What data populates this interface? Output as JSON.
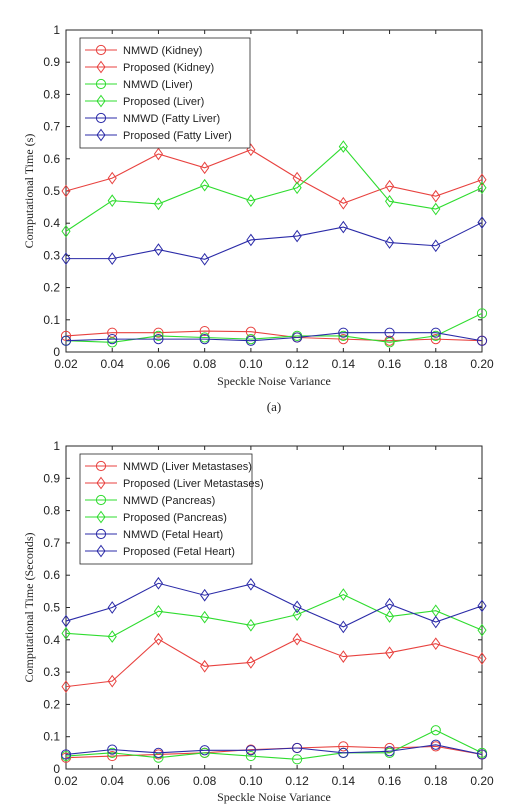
{
  "chart_data": [
    {
      "type": "line",
      "caption": "(a)",
      "xlabel": "Speckle Noise Variance",
      "ylabel": "Computational Time (s)",
      "xlim": [
        0.02,
        0.2
      ],
      "ylim": [
        0,
        1
      ],
      "x": [
        0.02,
        0.04,
        0.06,
        0.08,
        0.1,
        0.12,
        0.14,
        0.16,
        0.18,
        0.2
      ],
      "x_tick_labels": [
        "0.02",
        "0.04",
        "0.06",
        "0.08",
        "0.10",
        "0.12",
        "0.14",
        "0.16",
        "0.18",
        "0.20"
      ],
      "y_ticks": [
        0,
        0.1,
        0.2,
        0.3,
        0.4,
        0.5,
        0.6,
        0.7,
        0.8,
        0.9,
        1
      ],
      "y_tick_labels": [
        "0",
        "0.1",
        "0.2",
        "0.3",
        "0.4",
        "0.5",
        "0.6",
        "0.7",
        "0.8",
        "0.9",
        "1"
      ],
      "grid": false,
      "legend_position": "top-left",
      "series": [
        {
          "name": "NMWD (Kidney)",
          "color": "#e8423f",
          "marker": "circle",
          "values": [
            0.05,
            0.06,
            0.06,
            0.065,
            0.063,
            0.045,
            0.04,
            0.035,
            0.04,
            0.035
          ]
        },
        {
          "name": "Proposed (Kidney)",
          "color": "#e8423f",
          "marker": "diamond",
          "values": [
            0.5,
            0.54,
            0.615,
            0.572,
            0.628,
            0.54,
            0.462,
            0.515,
            0.484,
            0.535
          ]
        },
        {
          "name": "NMWD (Liver)",
          "color": "#2fdc2f",
          "marker": "circle",
          "values": [
            0.035,
            0.03,
            0.05,
            0.045,
            0.04,
            0.05,
            0.05,
            0.03,
            0.05,
            0.12
          ]
        },
        {
          "name": "Proposed (Liver)",
          "color": "#2fdc2f",
          "marker": "diamond",
          "values": [
            0.375,
            0.47,
            0.46,
            0.518,
            0.47,
            0.51,
            0.638,
            0.468,
            0.444,
            0.51
          ]
        },
        {
          "name": "NMWD (Fatty Liver)",
          "color": "#2b2ba8",
          "marker": "circle",
          "values": [
            0.035,
            0.04,
            0.04,
            0.04,
            0.035,
            0.045,
            0.06,
            0.06,
            0.06,
            0.035
          ]
        },
        {
          "name": "Proposed (Fatty Liver)",
          "color": "#2b2ba8",
          "marker": "diamond",
          "values": [
            0.29,
            0.29,
            0.318,
            0.288,
            0.348,
            0.36,
            0.388,
            0.34,
            0.33,
            0.402
          ]
        }
      ]
    },
    {
      "type": "line",
      "caption": "",
      "xlabel": "Speckle Noise Variance",
      "ylabel": "Computational Time (Seconds)",
      "xlim": [
        0.02,
        0.2
      ],
      "ylim": [
        0,
        1
      ],
      "x": [
        0.02,
        0.04,
        0.06,
        0.08,
        0.1,
        0.12,
        0.14,
        0.16,
        0.18,
        0.2
      ],
      "x_tick_labels": [
        "0.02",
        "0.04",
        "0.06",
        "0.08",
        "0.10",
        "0.12",
        "0.14",
        "0.16",
        "0.18",
        "0.20"
      ],
      "y_ticks": [
        0,
        0.1,
        0.2,
        0.3,
        0.4,
        0.5,
        0.6,
        0.7,
        0.8,
        0.9,
        1
      ],
      "y_tick_labels": [
        "0",
        "0.1",
        "0.2",
        "0.3",
        "0.4",
        "0.5",
        "0.6",
        "0.7",
        "0.8",
        "0.9",
        "1"
      ],
      "grid": false,
      "legend_position": "top-left",
      "series": [
        {
          "name": "NMWD (Liver Metastases)",
          "color": "#e8423f",
          "marker": "circle",
          "values": [
            0.035,
            0.04,
            0.045,
            0.05,
            0.06,
            0.065,
            0.07,
            0.065,
            0.07,
            0.045
          ]
        },
        {
          "name": "Proposed (Liver Metastases)",
          "color": "#e8423f",
          "marker": "diamond",
          "values": [
            0.255,
            0.272,
            0.402,
            0.318,
            0.33,
            0.402,
            0.348,
            0.36,
            0.388,
            0.342
          ]
        },
        {
          "name": "NMWD (Pancreas)",
          "color": "#2fdc2f",
          "marker": "circle",
          "values": [
            0.04,
            0.05,
            0.035,
            0.05,
            0.04,
            0.03,
            0.05,
            0.05,
            0.12,
            0.05
          ]
        },
        {
          "name": "Proposed (Pancreas)",
          "color": "#2fdc2f",
          "marker": "diamond",
          "values": [
            0.42,
            0.41,
            0.488,
            0.47,
            0.445,
            0.478,
            0.54,
            0.472,
            0.49,
            0.43
          ]
        },
        {
          "name": "NMWD (Fetal Heart)",
          "color": "#2b2ba8",
          "marker": "circle",
          "values": [
            0.045,
            0.06,
            0.05,
            0.058,
            0.058,
            0.065,
            0.05,
            0.055,
            0.075,
            0.045
          ]
        },
        {
          "name": "Proposed (Fetal Heart)",
          "color": "#2b2ba8",
          "marker": "diamond",
          "values": [
            0.458,
            0.5,
            0.575,
            0.538,
            0.572,
            0.502,
            0.44,
            0.51,
            0.455,
            0.505
          ]
        }
      ]
    }
  ]
}
